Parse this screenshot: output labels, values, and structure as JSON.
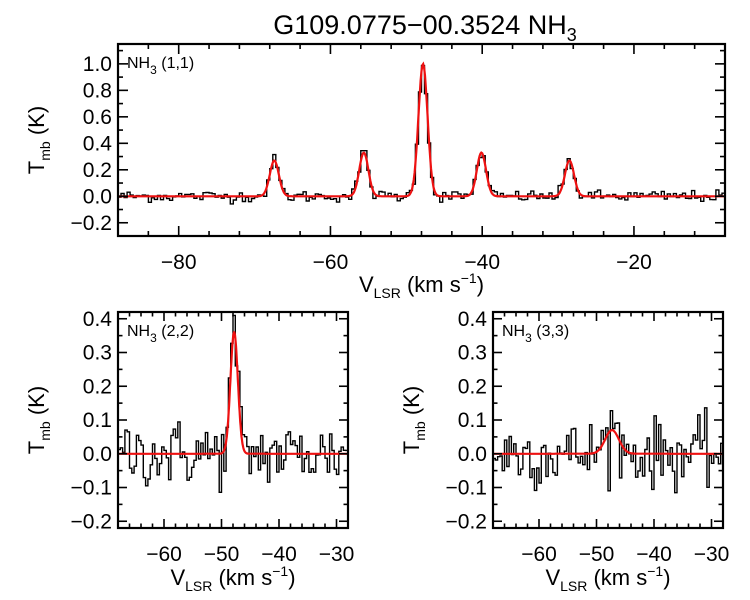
{
  "title": {
    "main": "G109.0775−00.3524 NH",
    "sub": "3"
  },
  "chart_data": [
    {
      "type": "line",
      "panel_label": {
        "main": "NH",
        "sub": "3",
        "rest": " (1,1)"
      },
      "xlabel": {
        "main": "V",
        "sub": "LSR",
        "rest": " (km s",
        "sup": "−1",
        "close": ")"
      },
      "ylabel": {
        "main": "T",
        "sub": "mb",
        "rest": " (K)"
      },
      "xlim": [
        -88,
        -8
      ],
      "ylim": [
        -0.3,
        1.15
      ],
      "xticks": [
        -80,
        -60,
        -40,
        -20
      ],
      "xtick_labels": [
        "−80",
        "−60",
        "−40",
        "−20"
      ],
      "yticks": [
        -0.2,
        0.0,
        0.2,
        0.4,
        0.6,
        0.8,
        1.0
      ],
      "ytick_labels": [
        "−0.2",
        "0.0",
        "0.2",
        "0.4",
        "0.6",
        "0.8",
        "1.0"
      ],
      "noise_rms": 0.022,
      "channel_width_kms": 0.4,
      "fit_components": [
        {
          "center": -67.4,
          "amplitude": 0.27,
          "sigma": 0.6
        },
        {
          "center": -55.6,
          "amplitude": 0.33,
          "sigma": 0.6
        },
        {
          "center": -47.8,
          "amplitude": 1.0,
          "sigma": 0.6
        },
        {
          "center": -40.1,
          "amplitude": 0.33,
          "sigma": 0.6
        },
        {
          "center": -28.5,
          "amplitude": 0.27,
          "sigma": 0.6
        }
      ],
      "series": [
        {
          "name": "",
          "style": "observed-histogram",
          "color": "#000000"
        },
        {
          "name": "",
          "style": "fit",
          "color": "#ee1111"
        }
      ]
    },
    {
      "type": "line",
      "panel_label": {
        "main": "NH",
        "sub": "3",
        "rest": " (2,2)"
      },
      "xlabel": {
        "main": "V",
        "sub": "LSR",
        "rest": " (km s",
        "sup": "−1",
        "close": ")"
      },
      "ylabel": {
        "main": "T",
        "sub": "mb",
        "rest": " (K)"
      },
      "xlim": [
        -68,
        -28
      ],
      "ylim": [
        -0.22,
        0.42
      ],
      "xticks": [
        -60,
        -50,
        -40,
        -30
      ],
      "xtick_labels": [
        "−60",
        "−50",
        "−40",
        "−30"
      ],
      "yticks": [
        -0.2,
        -0.1,
        0.0,
        0.1,
        0.2,
        0.3,
        0.4
      ],
      "ytick_labels": [
        "−0.2",
        "−0.1",
        "0.0",
        "0.1",
        "0.2",
        "0.3",
        "0.4"
      ],
      "noise_rms": 0.05,
      "channel_width_kms": 0.4,
      "fit_components": [
        {
          "center": -47.8,
          "amplitude": 0.36,
          "sigma": 0.65
        }
      ],
      "series": [
        {
          "name": "",
          "style": "observed-histogram",
          "color": "#000000"
        },
        {
          "name": "",
          "style": "fit",
          "color": "#ee1111"
        }
      ]
    },
    {
      "type": "line",
      "panel_label": {
        "main": "NH",
        "sub": "3",
        "rest": " (3,3)"
      },
      "xlabel": {
        "main": "V",
        "sub": "LSR",
        "rest": " (km s",
        "sup": "−1",
        "close": ")"
      },
      "ylabel": {
        "main": "T",
        "sub": "mb",
        "rest": " (K)"
      },
      "xlim": [
        -68,
        -28
      ],
      "ylim": [
        -0.22,
        0.42
      ],
      "xticks": [
        -60,
        -50,
        -40,
        -30
      ],
      "xtick_labels": [
        "−60",
        "−50",
        "−40",
        "−30"
      ],
      "yticks": [
        -0.2,
        -0.1,
        0.0,
        0.1,
        0.2,
        0.3,
        0.4
      ],
      "ytick_labels": [
        "−0.2",
        "−0.1",
        "0.0",
        "0.1",
        "0.2",
        "0.3",
        "0.4"
      ],
      "noise_rms": 0.05,
      "channel_width_kms": 0.4,
      "fit_components": [
        {
          "center": -47.3,
          "amplitude": 0.07,
          "sigma": 1.2
        }
      ],
      "series": [
        {
          "name": "",
          "style": "observed-histogram",
          "color": "#000000"
        },
        {
          "name": "",
          "style": "fit",
          "color": "#ee1111"
        }
      ]
    }
  ]
}
